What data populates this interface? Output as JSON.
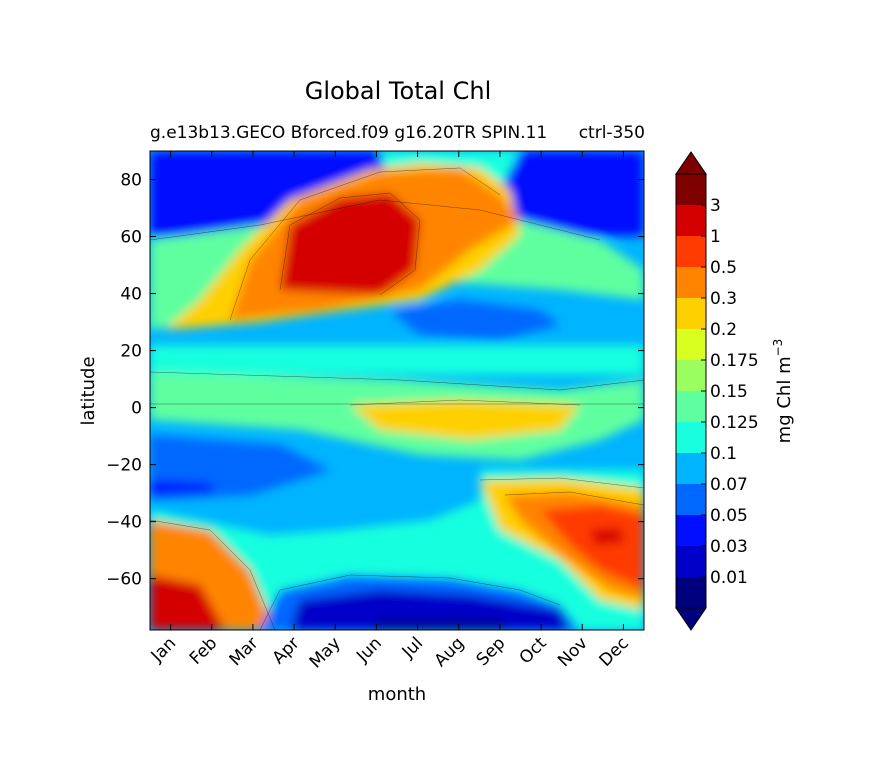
{
  "chart_data": {
    "type": "heatmap",
    "title": "Global Total Chl",
    "subtitle": "g.e13b13.GECO Bforced.f09 g16.20TR SPIN.11",
    "subtitle_right": "ctrl-350",
    "xlabel": "month",
    "ylabel": "latitude",
    "x_ticks": [
      "Jan",
      "Feb",
      "Mar",
      "Apr",
      "May",
      "Jun",
      "Jul",
      "Aug",
      "Sep",
      "Oct",
      "Nov",
      "Dec"
    ],
    "y_ticks": [
      80,
      60,
      40,
      20,
      0,
      -20,
      -40,
      -60
    ],
    "xlim": [
      0.5,
      12.5
    ],
    "ylim": [
      -78,
      90
    ],
    "colorbar": {
      "label": "mg Chl m",
      "label_superscript": "−3",
      "extend": "both",
      "levels": [
        "0.01",
        "0.03",
        "0.05",
        "0.07",
        "0.1",
        "0.125",
        "0.15",
        "0.175",
        "0.2",
        "0.3",
        "0.5",
        "1",
        "3"
      ],
      "colors": [
        "#00007f",
        "#0000c8",
        "#0010ff",
        "#0068ff",
        "#00b4ff",
        "#19ffde",
        "#5effa0",
        "#9aff5e",
        "#d8ff1f",
        "#ffd000",
        "#ff8500",
        "#ff3b00",
        "#d40000",
        "#7f0000"
      ]
    },
    "fields": [
      {
        "name": "background",
        "level_index": 5
      },
      {
        "name": "arctic-winter-low",
        "level_index": 2
      },
      {
        "name": "subpolar-south-low",
        "level_index": 3
      },
      {
        "name": "northern-spring-bloom",
        "level_index": 10
      },
      {
        "name": "northern-bloom-core",
        "level_index": 12
      },
      {
        "name": "equatorial-band",
        "level_index": 8
      },
      {
        "name": "southern-summer-bloom",
        "level_index": 10
      },
      {
        "name": "southern-summer-core",
        "level_index": 11
      },
      {
        "name": "antarctic-winter-low",
        "level_index": 1
      }
    ]
  }
}
